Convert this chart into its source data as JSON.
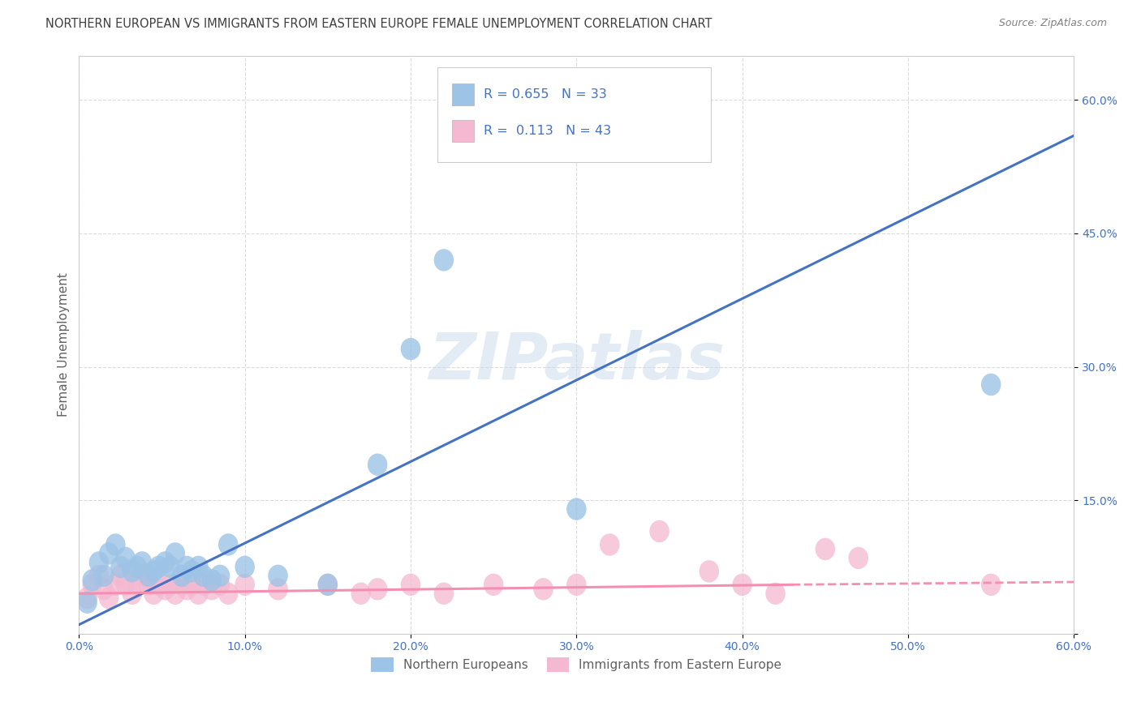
{
  "title": "NORTHERN EUROPEAN VS IMMIGRANTS FROM EASTERN EUROPE FEMALE UNEMPLOYMENT CORRELATION CHART",
  "source": "Source: ZipAtlas.com",
  "ylabel": "Female Unemployment",
  "watermark": "ZIPatlas",
  "xlim": [
    0.0,
    0.6
  ],
  "ylim": [
    0.0,
    0.65
  ],
  "xticks": [
    0.0,
    0.1,
    0.2,
    0.3,
    0.4,
    0.5,
    0.6
  ],
  "yticks": [
    0.0,
    0.15,
    0.3,
    0.45,
    0.6
  ],
  "xtick_labels": [
    "0.0%",
    "10.0%",
    "20.0%",
    "30.0%",
    "40.0%",
    "50.0%",
    "60.0%"
  ],
  "ytick_labels": [
    "",
    "15.0%",
    "30.0%",
    "45.0%",
    "60.0%"
  ],
  "legend_items": [
    {
      "label": "R = 0.655   N = 33",
      "color": "#a8c4e0"
    },
    {
      "label": "R =  0.113   N = 43",
      "color": "#f4a8c0"
    }
  ],
  "legend_labels_bottom": [
    "Northern Europeans",
    "Immigrants from Eastern Europe"
  ],
  "blue_color": "#4472c4",
  "pink_color": "#f48fb1",
  "blue_scatter_color": "#9dc3e6",
  "pink_scatter_color": "#f4b8d0",
  "line_blue": {
    "x0": 0.0,
    "y0": 0.01,
    "x1": 0.6,
    "y1": 0.56
  },
  "line_pink_solid": {
    "x0": 0.0,
    "y0": 0.045,
    "x1": 0.43,
    "y1": 0.055
  },
  "line_pink_dashed": {
    "x0": 0.43,
    "y0": 0.055,
    "x1": 0.6,
    "y1": 0.058
  },
  "blue_points": [
    [
      0.005,
      0.035
    ],
    [
      0.008,
      0.06
    ],
    [
      0.012,
      0.08
    ],
    [
      0.015,
      0.065
    ],
    [
      0.018,
      0.09
    ],
    [
      0.022,
      0.1
    ],
    [
      0.025,
      0.075
    ],
    [
      0.028,
      0.085
    ],
    [
      0.032,
      0.07
    ],
    [
      0.035,
      0.075
    ],
    [
      0.038,
      0.08
    ],
    [
      0.042,
      0.065
    ],
    [
      0.045,
      0.07
    ],
    [
      0.048,
      0.075
    ],
    [
      0.052,
      0.08
    ],
    [
      0.055,
      0.075
    ],
    [
      0.058,
      0.09
    ],
    [
      0.062,
      0.065
    ],
    [
      0.065,
      0.075
    ],
    [
      0.068,
      0.07
    ],
    [
      0.072,
      0.075
    ],
    [
      0.075,
      0.065
    ],
    [
      0.08,
      0.06
    ],
    [
      0.085,
      0.065
    ],
    [
      0.09,
      0.1
    ],
    [
      0.1,
      0.075
    ],
    [
      0.12,
      0.065
    ],
    [
      0.15,
      0.055
    ],
    [
      0.18,
      0.19
    ],
    [
      0.2,
      0.32
    ],
    [
      0.22,
      0.42
    ],
    [
      0.3,
      0.14
    ],
    [
      0.55,
      0.28
    ]
  ],
  "pink_points": [
    [
      0.005,
      0.04
    ],
    [
      0.008,
      0.055
    ],
    [
      0.012,
      0.065
    ],
    [
      0.015,
      0.05
    ],
    [
      0.018,
      0.04
    ],
    [
      0.022,
      0.055
    ],
    [
      0.025,
      0.065
    ],
    [
      0.028,
      0.055
    ],
    [
      0.032,
      0.045
    ],
    [
      0.035,
      0.055
    ],
    [
      0.038,
      0.065
    ],
    [
      0.042,
      0.055
    ],
    [
      0.045,
      0.045
    ],
    [
      0.048,
      0.055
    ],
    [
      0.052,
      0.05
    ],
    [
      0.055,
      0.055
    ],
    [
      0.058,
      0.045
    ],
    [
      0.062,
      0.055
    ],
    [
      0.065,
      0.05
    ],
    [
      0.068,
      0.055
    ],
    [
      0.072,
      0.045
    ],
    [
      0.075,
      0.055
    ],
    [
      0.08,
      0.05
    ],
    [
      0.085,
      0.055
    ],
    [
      0.09,
      0.045
    ],
    [
      0.1,
      0.055
    ],
    [
      0.12,
      0.05
    ],
    [
      0.15,
      0.055
    ],
    [
      0.17,
      0.045
    ],
    [
      0.18,
      0.05
    ],
    [
      0.2,
      0.055
    ],
    [
      0.22,
      0.045
    ],
    [
      0.25,
      0.055
    ],
    [
      0.28,
      0.05
    ],
    [
      0.3,
      0.055
    ],
    [
      0.32,
      0.1
    ],
    [
      0.35,
      0.115
    ],
    [
      0.38,
      0.07
    ],
    [
      0.4,
      0.055
    ],
    [
      0.42,
      0.045
    ],
    [
      0.45,
      0.095
    ],
    [
      0.47,
      0.085
    ],
    [
      0.55,
      0.055
    ]
  ],
  "background_color": "#ffffff",
  "grid_color": "#d8d8d8",
  "title_color": "#404040",
  "axis_label_color": "#606060",
  "tick_label_color": "#4472c4",
  "source_color": "#808080"
}
